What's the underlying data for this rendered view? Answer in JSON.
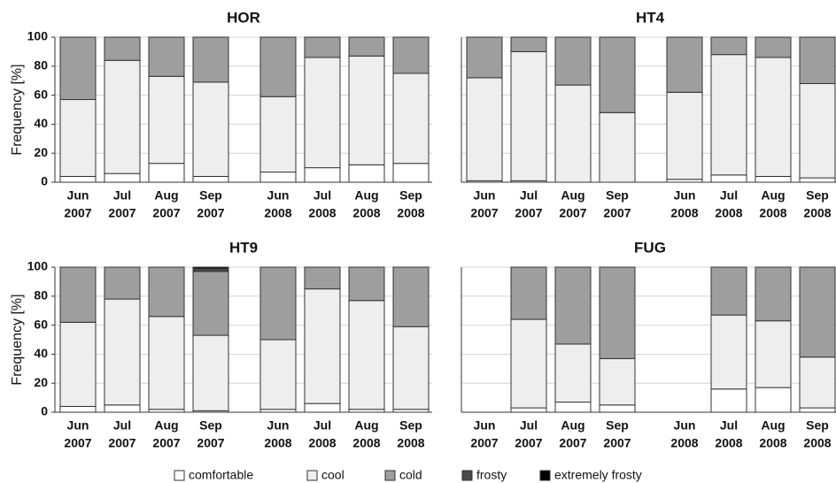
{
  "legend": [
    {
      "name": "comfortable",
      "color": "#ffffff"
    },
    {
      "name": "cool",
      "color": "#eeeeee"
    },
    {
      "name": "cold",
      "color": "#9e9e9e"
    },
    {
      "name": "frosty",
      "color": "#4a4a4a"
    },
    {
      "name": "extremely frosty",
      "color": "#000000"
    }
  ],
  "chart_data": [
    {
      "type": "bar",
      "stacked": true,
      "title": "HOR",
      "ylabel": "Frequency [%]",
      "categories": [
        [
          "Jun",
          "2007"
        ],
        [
          "Jul",
          "2007"
        ],
        [
          "Aug",
          "2007"
        ],
        [
          "Sep",
          "2007"
        ],
        [
          "Jun",
          "2008"
        ],
        [
          "Jul",
          "2008"
        ],
        [
          "Aug",
          "2008"
        ],
        [
          "Sep",
          "2008"
        ]
      ],
      "series": [
        {
          "values": [
            4,
            6,
            13,
            4,
            7,
            10,
            12,
            13
          ]
        },
        {
          "values": [
            53,
            78,
            60,
            65,
            52,
            76,
            75,
            62
          ]
        },
        {
          "values": [
            43,
            16,
            27,
            31,
            41,
            14,
            13,
            25
          ]
        },
        {
          "values": [
            0,
            0,
            0,
            0,
            0,
            0,
            0,
            0
          ]
        },
        {
          "values": [
            0,
            0,
            0,
            0,
            0,
            0,
            0,
            0
          ]
        }
      ],
      "ylim": [
        0,
        100
      ],
      "yticks": [
        0,
        20,
        40,
        60,
        80,
        100
      ],
      "tick_labels": true,
      "grid": true
    },
    {
      "type": "bar",
      "stacked": true,
      "title": "HT4",
      "categories": [
        [
          "Jun",
          "2007"
        ],
        [
          "Jul",
          "2007"
        ],
        [
          "Aug",
          "2007"
        ],
        [
          "Sep",
          "2007"
        ],
        [
          "Jun",
          "2008"
        ],
        [
          "Jul",
          "2008"
        ],
        [
          "Aug",
          "2008"
        ],
        [
          "Sep",
          "2008"
        ]
      ],
      "series": [
        {
          "values": [
            1,
            1,
            0,
            0,
            2,
            5,
            4,
            3
          ]
        },
        {
          "values": [
            71,
            89,
            67,
            48,
            60,
            83,
            82,
            65
          ]
        },
        {
          "values": [
            28,
            10,
            33,
            52,
            38,
            12,
            14,
            32
          ]
        },
        {
          "values": [
            0,
            0,
            0,
            0,
            0,
            0,
            0,
            0
          ]
        },
        {
          "values": [
            0,
            0,
            0,
            0,
            0,
            0,
            0,
            0
          ]
        }
      ],
      "ylim": [
        0,
        100
      ],
      "yticks": [
        0,
        20,
        40,
        60,
        80,
        100
      ],
      "tick_labels": false,
      "grid": true
    },
    {
      "type": "bar",
      "stacked": true,
      "title": "HT9",
      "ylabel": "Frequency [%]",
      "categories": [
        [
          "Jun",
          "2007"
        ],
        [
          "Jul",
          "2007"
        ],
        [
          "Aug",
          "2007"
        ],
        [
          "Sep",
          "2007"
        ],
        [
          "Jun",
          "2008"
        ],
        [
          "Jul",
          "2008"
        ],
        [
          "Aug",
          "2008"
        ],
        [
          "Sep",
          "2008"
        ]
      ],
      "series": [
        {
          "values": [
            4,
            5,
            2,
            1,
            2,
            6,
            2,
            2
          ]
        },
        {
          "values": [
            58,
            73,
            64,
            52,
            48,
            79,
            75,
            57
          ]
        },
        {
          "values": [
            38,
            22,
            34,
            44,
            50,
            15,
            23,
            41
          ]
        },
        {
          "values": [
            0,
            0,
            0,
            2,
            0,
            0,
            0,
            0
          ]
        },
        {
          "values": [
            0,
            0,
            0,
            1,
            0,
            0,
            0,
            0
          ]
        }
      ],
      "ylim": [
        0,
        100
      ],
      "yticks": [
        0,
        20,
        40,
        60,
        80,
        100
      ],
      "tick_labels": true,
      "grid": true
    },
    {
      "type": "bar",
      "stacked": true,
      "title": "FUG",
      "categories": [
        [
          "Jun",
          "2007"
        ],
        [
          "Jul",
          "2007"
        ],
        [
          "Aug",
          "2007"
        ],
        [
          "Sep",
          "2007"
        ],
        [
          "Jun",
          "2008"
        ],
        [
          "Jul",
          "2008"
        ],
        [
          "Aug",
          "2008"
        ],
        [
          "Sep",
          "2008"
        ]
      ],
      "series": [
        {
          "values": [
            null,
            3,
            7,
            5,
            null,
            16,
            17,
            3
          ]
        },
        {
          "values": [
            null,
            61,
            40,
            32,
            null,
            51,
            46,
            35
          ]
        },
        {
          "values": [
            null,
            36,
            53,
            63,
            null,
            33,
            37,
            62
          ]
        },
        {
          "values": [
            null,
            0,
            0,
            0,
            null,
            0,
            0,
            0
          ]
        },
        {
          "values": [
            null,
            0,
            0,
            0,
            null,
            0,
            0,
            0
          ]
        }
      ],
      "ylim": [
        0,
        100
      ],
      "yticks": [
        0,
        20,
        40,
        60,
        80,
        100
      ],
      "tick_labels": false,
      "grid": true
    }
  ]
}
